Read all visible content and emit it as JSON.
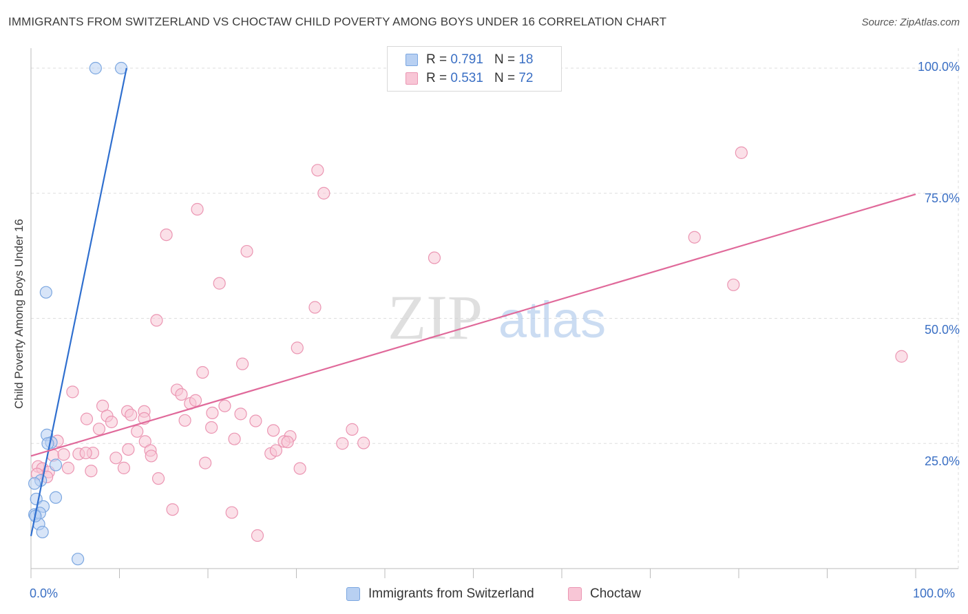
{
  "title": "IMMIGRANTS FROM SWITZERLAND VS CHOCTAW CHILD POVERTY AMONG BOYS UNDER 16 CORRELATION CHART",
  "source": "Source: ZipAtlas.com",
  "watermark": {
    "zip": "ZIP",
    "atlas": "atlas"
  },
  "legend": {
    "series1": {
      "r_label": "R = ",
      "r_value": "0.791",
      "n_label": "N = ",
      "n_value": "18"
    },
    "series2": {
      "r_label": "R = ",
      "r_value": "0.531",
      "n_label": "N = ",
      "n_value": "72"
    }
  },
  "colors": {
    "switzerland_fill": "#b8d0f2",
    "switzerland_stroke": "#7aa6e0",
    "switzerland_line": "#2f6fcf",
    "choctaw_fill": "#f8c6d6",
    "choctaw_stroke": "#eb95b2",
    "choctaw_line": "#e0699a",
    "tick_text": "#3a6fc4",
    "grid": "#dddddd"
  },
  "chart_data": {
    "type": "scatter",
    "title": "IMMIGRANTS FROM SWITZERLAND VS CHOCTAW CHILD POVERTY AMONG BOYS UNDER 16 CORRELATION CHART",
    "xlabel": "",
    "ylabel": "Child Poverty Among Boys Under 16",
    "xlim": [
      0,
      100
    ],
    "ylim": [
      0,
      100
    ],
    "x_tick_labels": [
      "0.0%",
      "100.0%"
    ],
    "y_ticks": [
      25,
      50,
      75,
      100
    ],
    "y_tick_labels": [
      "25.0%",
      "50.0%",
      "75.0%",
      "100.0%"
    ],
    "legend_position": "top-center",
    "series": [
      {
        "name": "Immigrants from Switzerland",
        "r": 0.791,
        "n": 18,
        "trend": {
          "x1": 0.0,
          "y1": 6.5,
          "x2": 10.8,
          "y2": 100.0
        },
        "points": [
          [
            7.3,
            100.0
          ],
          [
            10.2,
            100.0
          ],
          [
            1.7,
            55.2
          ],
          [
            1.8,
            26.7
          ],
          [
            2.3,
            25.2
          ],
          [
            1.9,
            25.0
          ],
          [
            2.8,
            20.7
          ],
          [
            1.1,
            17.6
          ],
          [
            0.4,
            17.0
          ],
          [
            0.6,
            13.9
          ],
          [
            2.8,
            14.2
          ],
          [
            1.4,
            12.4
          ],
          [
            0.4,
            10.8
          ],
          [
            1.0,
            11.1
          ],
          [
            0.9,
            8.9
          ],
          [
            1.3,
            7.3
          ],
          [
            0.5,
            10.5
          ],
          [
            5.3,
            1.9
          ]
        ]
      },
      {
        "name": "Choctaw",
        "r": 0.531,
        "n": 72,
        "trend": {
          "x1": 0.0,
          "y1": 22.5,
          "x2": 100.0,
          "y2": 74.8
        },
        "points": [
          [
            80.3,
            83.1
          ],
          [
            32.4,
            79.6
          ],
          [
            33.1,
            75.0
          ],
          [
            18.8,
            71.8
          ],
          [
            15.3,
            66.7
          ],
          [
            75.0,
            66.2
          ],
          [
            24.4,
            63.4
          ],
          [
            45.6,
            62.1
          ],
          [
            21.3,
            57.0
          ],
          [
            79.4,
            56.7
          ],
          [
            32.1,
            52.2
          ],
          [
            14.2,
            49.6
          ],
          [
            30.1,
            44.1
          ],
          [
            98.4,
            42.4
          ],
          [
            23.9,
            40.9
          ],
          [
            19.4,
            39.2
          ],
          [
            4.7,
            35.3
          ],
          [
            16.5,
            35.7
          ],
          [
            17.0,
            34.8
          ],
          [
            18.0,
            33.0
          ],
          [
            18.6,
            33.6
          ],
          [
            8.1,
            32.5
          ],
          [
            21.9,
            32.5
          ],
          [
            10.9,
            31.4
          ],
          [
            12.8,
            31.4
          ],
          [
            20.5,
            31.1
          ],
          [
            23.7,
            30.9
          ],
          [
            8.6,
            30.5
          ],
          [
            11.3,
            30.7
          ],
          [
            6.3,
            29.9
          ],
          [
            12.8,
            30.0
          ],
          [
            17.4,
            29.6
          ],
          [
            25.4,
            29.5
          ],
          [
            9.1,
            29.3
          ],
          [
            7.7,
            27.9
          ],
          [
            20.4,
            28.2
          ],
          [
            12.0,
            27.4
          ],
          [
            27.4,
            27.6
          ],
          [
            29.3,
            26.4
          ],
          [
            23.0,
            25.9
          ],
          [
            36.3,
            27.8
          ],
          [
            3.0,
            25.5
          ],
          [
            12.9,
            25.4
          ],
          [
            28.6,
            25.4
          ],
          [
            29.0,
            25.3
          ],
          [
            35.2,
            25.0
          ],
          [
            37.6,
            25.1
          ],
          [
            7.0,
            23.1
          ],
          [
            13.5,
            23.6
          ],
          [
            11.0,
            23.8
          ],
          [
            27.1,
            23.0
          ],
          [
            27.7,
            23.6
          ],
          [
            2.5,
            22.6
          ],
          [
            3.7,
            22.8
          ],
          [
            5.4,
            22.9
          ],
          [
            6.2,
            23.1
          ],
          [
            9.6,
            22.1
          ],
          [
            13.6,
            22.5
          ],
          [
            19.7,
            21.1
          ],
          [
            0.8,
            20.4
          ],
          [
            1.3,
            20.0
          ],
          [
            2.0,
            19.3
          ],
          [
            4.2,
            20.1
          ],
          [
            6.8,
            19.5
          ],
          [
            10.5,
            20.1
          ],
          [
            30.4,
            20.0
          ],
          [
            0.7,
            18.9
          ],
          [
            1.8,
            18.3
          ],
          [
            14.4,
            18.0
          ],
          [
            16.0,
            11.8
          ],
          [
            22.7,
            11.2
          ],
          [
            25.6,
            6.6
          ]
        ]
      }
    ]
  }
}
